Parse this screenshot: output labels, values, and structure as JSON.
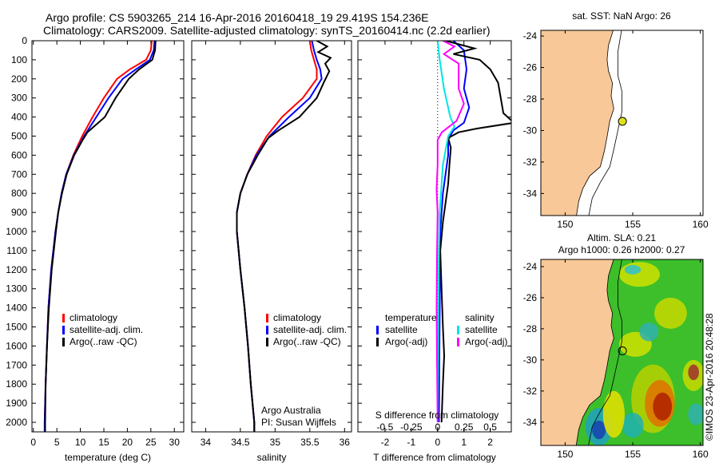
{
  "title_line1": "Argo profile: CS 5903265_214 16-Apr-2016 20160418_19 29.419S 154.236E",
  "title_line2": "Climatology: CARS2009. Satellite-adjusted climatology: synTS_20160414.nc (2.2d earlier)",
  "credit": "©IMOS 23-Apr-2016 20:48:28",
  "colors": {
    "climatology": "#ff0000",
    "satellite_adj": "#0000ff",
    "argo": "#000000",
    "s_satellite": "#00e5e5",
    "s_argo": "#ff00ff",
    "land": "#f8c898"
  },
  "chart_data": [
    {
      "type": "line",
      "xlabel": "temperature (deg C)",
      "xlim": [
        -0.3,
        32
      ],
      "ylim": [
        0,
        2050
      ],
      "xticks": [
        0,
        5,
        10,
        15,
        20,
        25,
        30
      ],
      "yticks": [
        0,
        100,
        200,
        300,
        400,
        500,
        600,
        700,
        800,
        900,
        1000,
        1100,
        1200,
        1300,
        1400,
        1500,
        1600,
        1700,
        1800,
        1900,
        2000
      ],
      "legend": [
        "climatology",
        "satellite-adj. clim.",
        "Argo(..raw -QC)"
      ],
      "series": [
        {
          "name": "climatology",
          "color": "#ff0000",
          "points": [
            [
              25.2,
              0
            ],
            [
              25,
              50
            ],
            [
              24,
              100
            ],
            [
              20.5,
              150
            ],
            [
              17.8,
              200
            ],
            [
              15,
              300
            ],
            [
              12.6,
              400
            ],
            [
              10.4,
              500
            ],
            [
              8.5,
              600
            ],
            [
              7,
              700
            ],
            [
              6,
              800
            ],
            [
              5.3,
              900
            ],
            [
              4.7,
              1000
            ],
            [
              3.8,
              1200
            ],
            [
              3.2,
              1400
            ],
            [
              2.9,
              1600
            ],
            [
              2.6,
              1800
            ],
            [
              2.4,
              2000
            ],
            [
              2.4,
              2050
            ]
          ]
        },
        {
          "name": "satellite-adj. clim.",
          "color": "#0000ff",
          "points": [
            [
              25.8,
              0
            ],
            [
              25.6,
              50
            ],
            [
              24.8,
              100
            ],
            [
              21.8,
              150
            ],
            [
              19,
              200
            ],
            [
              16,
              300
            ],
            [
              13.4,
              400
            ],
            [
              10.8,
              500
            ],
            [
              8.6,
              600
            ],
            [
              7,
              700
            ],
            [
              6,
              800
            ],
            [
              5.3,
              900
            ],
            [
              4.7,
              1000
            ],
            [
              3.8,
              1200
            ],
            [
              3.2,
              1400
            ],
            [
              2.9,
              1600
            ],
            [
              2.6,
              1800
            ],
            [
              2.4,
              2000
            ],
            [
              2.4,
              2050
            ]
          ]
        },
        {
          "name": "Argo(..raw -QC)",
          "color": "#000000",
          "points": [
            [
              26,
              0
            ],
            [
              25.9,
              50
            ],
            [
              25.3,
              100
            ],
            [
              22.5,
              150
            ],
            [
              20.3,
              200
            ],
            [
              17.5,
              300
            ],
            [
              15.2,
              400
            ],
            [
              11.5,
              480
            ],
            [
              10.5,
              520
            ],
            [
              8.7,
              600
            ],
            [
              7.1,
              700
            ],
            [
              6.1,
              800
            ],
            [
              5.3,
              900
            ],
            [
              4.8,
              1000
            ],
            [
              3.9,
              1200
            ],
            [
              3.3,
              1400
            ],
            [
              2.9,
              1600
            ],
            [
              2.6,
              1800
            ],
            [
              2.5,
              2000
            ],
            [
              2.5,
              2050
            ]
          ]
        }
      ]
    },
    {
      "type": "line",
      "xlabel": "salinity",
      "xlim": [
        33.8,
        36.1
      ],
      "ylim": [
        0,
        2050
      ],
      "xticks": [
        34,
        34.5,
        35,
        35.5,
        36
      ],
      "legend": [
        "climatology",
        "satellite-adj. clim.",
        "Argo(..raw -QC)"
      ],
      "annotation": [
        "Argo Australia",
        "PI: Susan Wijffels"
      ],
      "series": [
        {
          "name": "climatology",
          "color": "#ff0000",
          "points": [
            [
              35.5,
              0
            ],
            [
              35.52,
              50
            ],
            [
              35.56,
              100
            ],
            [
              35.6,
              150
            ],
            [
              35.6,
              200
            ],
            [
              35.4,
              300
            ],
            [
              35.1,
              400
            ],
            [
              34.88,
              500
            ],
            [
              34.72,
              600
            ],
            [
              34.6,
              700
            ],
            [
              34.5,
              800
            ],
            [
              34.45,
              900
            ],
            [
              34.45,
              1000
            ],
            [
              34.5,
              1200
            ],
            [
              34.56,
              1400
            ],
            [
              34.61,
              1600
            ],
            [
              34.65,
              1800
            ],
            [
              34.7,
              2000
            ],
            [
              34.7,
              2050
            ]
          ]
        },
        {
          "name": "satellite-adj. clim.",
          "color": "#0000ff",
          "points": [
            [
              35.53,
              0
            ],
            [
              35.56,
              50
            ],
            [
              35.6,
              100
            ],
            [
              35.65,
              150
            ],
            [
              35.67,
              200
            ],
            [
              35.5,
              300
            ],
            [
              35.2,
              400
            ],
            [
              34.92,
              500
            ],
            [
              34.73,
              600
            ],
            [
              34.6,
              700
            ],
            [
              34.5,
              800
            ],
            [
              34.45,
              900
            ],
            [
              34.45,
              1000
            ],
            [
              34.5,
              1200
            ],
            [
              34.56,
              1400
            ],
            [
              34.61,
              1600
            ],
            [
              34.65,
              1800
            ],
            [
              34.7,
              2000
            ],
            [
              34.7,
              2050
            ]
          ]
        },
        {
          "name": "Argo(..raw -QC)",
          "color": "#000000",
          "points": [
            [
              35.6,
              0
            ],
            [
              35.75,
              30
            ],
            [
              35.62,
              60
            ],
            [
              35.8,
              90
            ],
            [
              35.72,
              120
            ],
            [
              35.78,
              160
            ],
            [
              35.7,
              220
            ],
            [
              35.6,
              300
            ],
            [
              35.35,
              400
            ],
            [
              35.05,
              470
            ],
            [
              34.9,
              510
            ],
            [
              34.75,
              600
            ],
            [
              34.6,
              700
            ],
            [
              34.5,
              800
            ],
            [
              34.45,
              900
            ],
            [
              34.45,
              1000
            ],
            [
              34.5,
              1200
            ],
            [
              34.56,
              1400
            ],
            [
              34.61,
              1600
            ],
            [
              34.65,
              1800
            ],
            [
              34.7,
              2000
            ],
            [
              34.7,
              2050
            ]
          ]
        }
      ]
    },
    {
      "type": "line",
      "xlabel": "T difference from climatology",
      "xlabel2": "S difference from climatology",
      "xlim": [
        -3.03,
        2.8
      ],
      "ylim": [
        0,
        2050
      ],
      "xticks": [
        -2,
        -1,
        0,
        1,
        2
      ],
      "xticks_s": [
        -0.5,
        -0.25,
        0,
        0.25,
        0.5
      ],
      "legend_t": {
        "title": "temperature",
        "items": [
          "satellite",
          "Argo(-adj)"
        ]
      },
      "legend_s": {
        "title": "salinity",
        "items": [
          "satellite",
          "Argo(-adj)"
        ]
      },
      "series": [
        {
          "name": "temperature satellite",
          "color": "#0000ff",
          "axis": "T",
          "points": [
            [
              0.6,
              0
            ],
            [
              1.0,
              50
            ],
            [
              1.1,
              150
            ],
            [
              1.0,
              250
            ],
            [
              1.2,
              350
            ],
            [
              1.0,
              430
            ],
            [
              0.6,
              470
            ],
            [
              0.4,
              520
            ],
            [
              0.4,
              600
            ],
            [
              0.3,
              700
            ],
            [
              0.2,
              800
            ],
            [
              0.1,
              1000
            ],
            [
              0.08,
              1400
            ],
            [
              0.05,
              2000
            ]
          ]
        },
        {
          "name": "temperature Argo(-adj)",
          "color": "#000000",
          "axis": "T",
          "points": [
            [
              0.3,
              0
            ],
            [
              1.4,
              40
            ],
            [
              0.6,
              70
            ],
            [
              1.6,
              100
            ],
            [
              2.0,
              150
            ],
            [
              2.3,
              220
            ],
            [
              2.4,
              300
            ],
            [
              2.5,
              380
            ],
            [
              2.9,
              430
            ],
            [
              1.5,
              460
            ],
            [
              0.8,
              480
            ],
            [
              0.4,
              510
            ],
            [
              0.5,
              560
            ],
            [
              0.45,
              650
            ],
            [
              0.4,
              750
            ],
            [
              0.3,
              850
            ],
            [
              0.2,
              950
            ],
            [
              0.1,
              1100
            ],
            [
              0.15,
              1300
            ],
            [
              0.2,
              1500
            ],
            [
              0.25,
              1650
            ],
            [
              0.2,
              1800
            ],
            [
              0.15,
              2000
            ]
          ]
        },
        {
          "name": "salinity satellite",
          "color": "#00e5e5",
          "axis": "S",
          "points": [
            [
              0,
              0
            ],
            [
              0.02,
              100
            ],
            [
              0.06,
              250
            ],
            [
              0.12,
              400
            ],
            [
              0.16,
              450
            ],
            [
              0.1,
              500
            ],
            [
              0.05,
              650
            ],
            [
              0.02,
              900
            ],
            [
              0.01,
              1200
            ],
            [
              0,
              2000
            ]
          ]
        },
        {
          "name": "salinity Argo(-adj)",
          "color": "#ff00ff",
          "axis": "S",
          "points": [
            [
              0.05,
              0
            ],
            [
              0.16,
              30
            ],
            [
              0.06,
              70
            ],
            [
              0.2,
              120
            ],
            [
              0.2,
              250
            ],
            [
              0.25,
              330
            ],
            [
              0.18,
              420
            ],
            [
              0.04,
              480
            ],
            [
              0,
              520
            ],
            [
              0,
              650
            ],
            [
              -0.01,
              780
            ],
            [
              0,
              900
            ],
            [
              -0.005,
              1100
            ],
            [
              -0.01,
              1400
            ],
            [
              -0.005,
              1700
            ],
            [
              0,
              2000
            ]
          ]
        }
      ]
    }
  ],
  "maps": [
    {
      "title": "sat. SST: NaN Argo: 26",
      "lonlim": [
        148.2,
        160.2
      ],
      "latlim": [
        -35.4,
        -23.64
      ],
      "lonticks": [
        150,
        155,
        160
      ],
      "latticks": [
        -24,
        -26,
        -28,
        -30,
        -32,
        -34
      ]
    },
    {
      "title_line1": "Altim. SLA: 0.21",
      "title_line2": "Argo h1000: 0.26 h2000: 0.27",
      "lonlim": [
        148.2,
        160.2
      ],
      "latlim": [
        -35.5,
        -23.54
      ],
      "lonticks": [
        150,
        155,
        160
      ],
      "latticks": [
        -24,
        -26,
        -28,
        -30,
        -32,
        -34
      ]
    }
  ],
  "argo_position": {
    "lon": 154.236,
    "lat": -29.419
  }
}
